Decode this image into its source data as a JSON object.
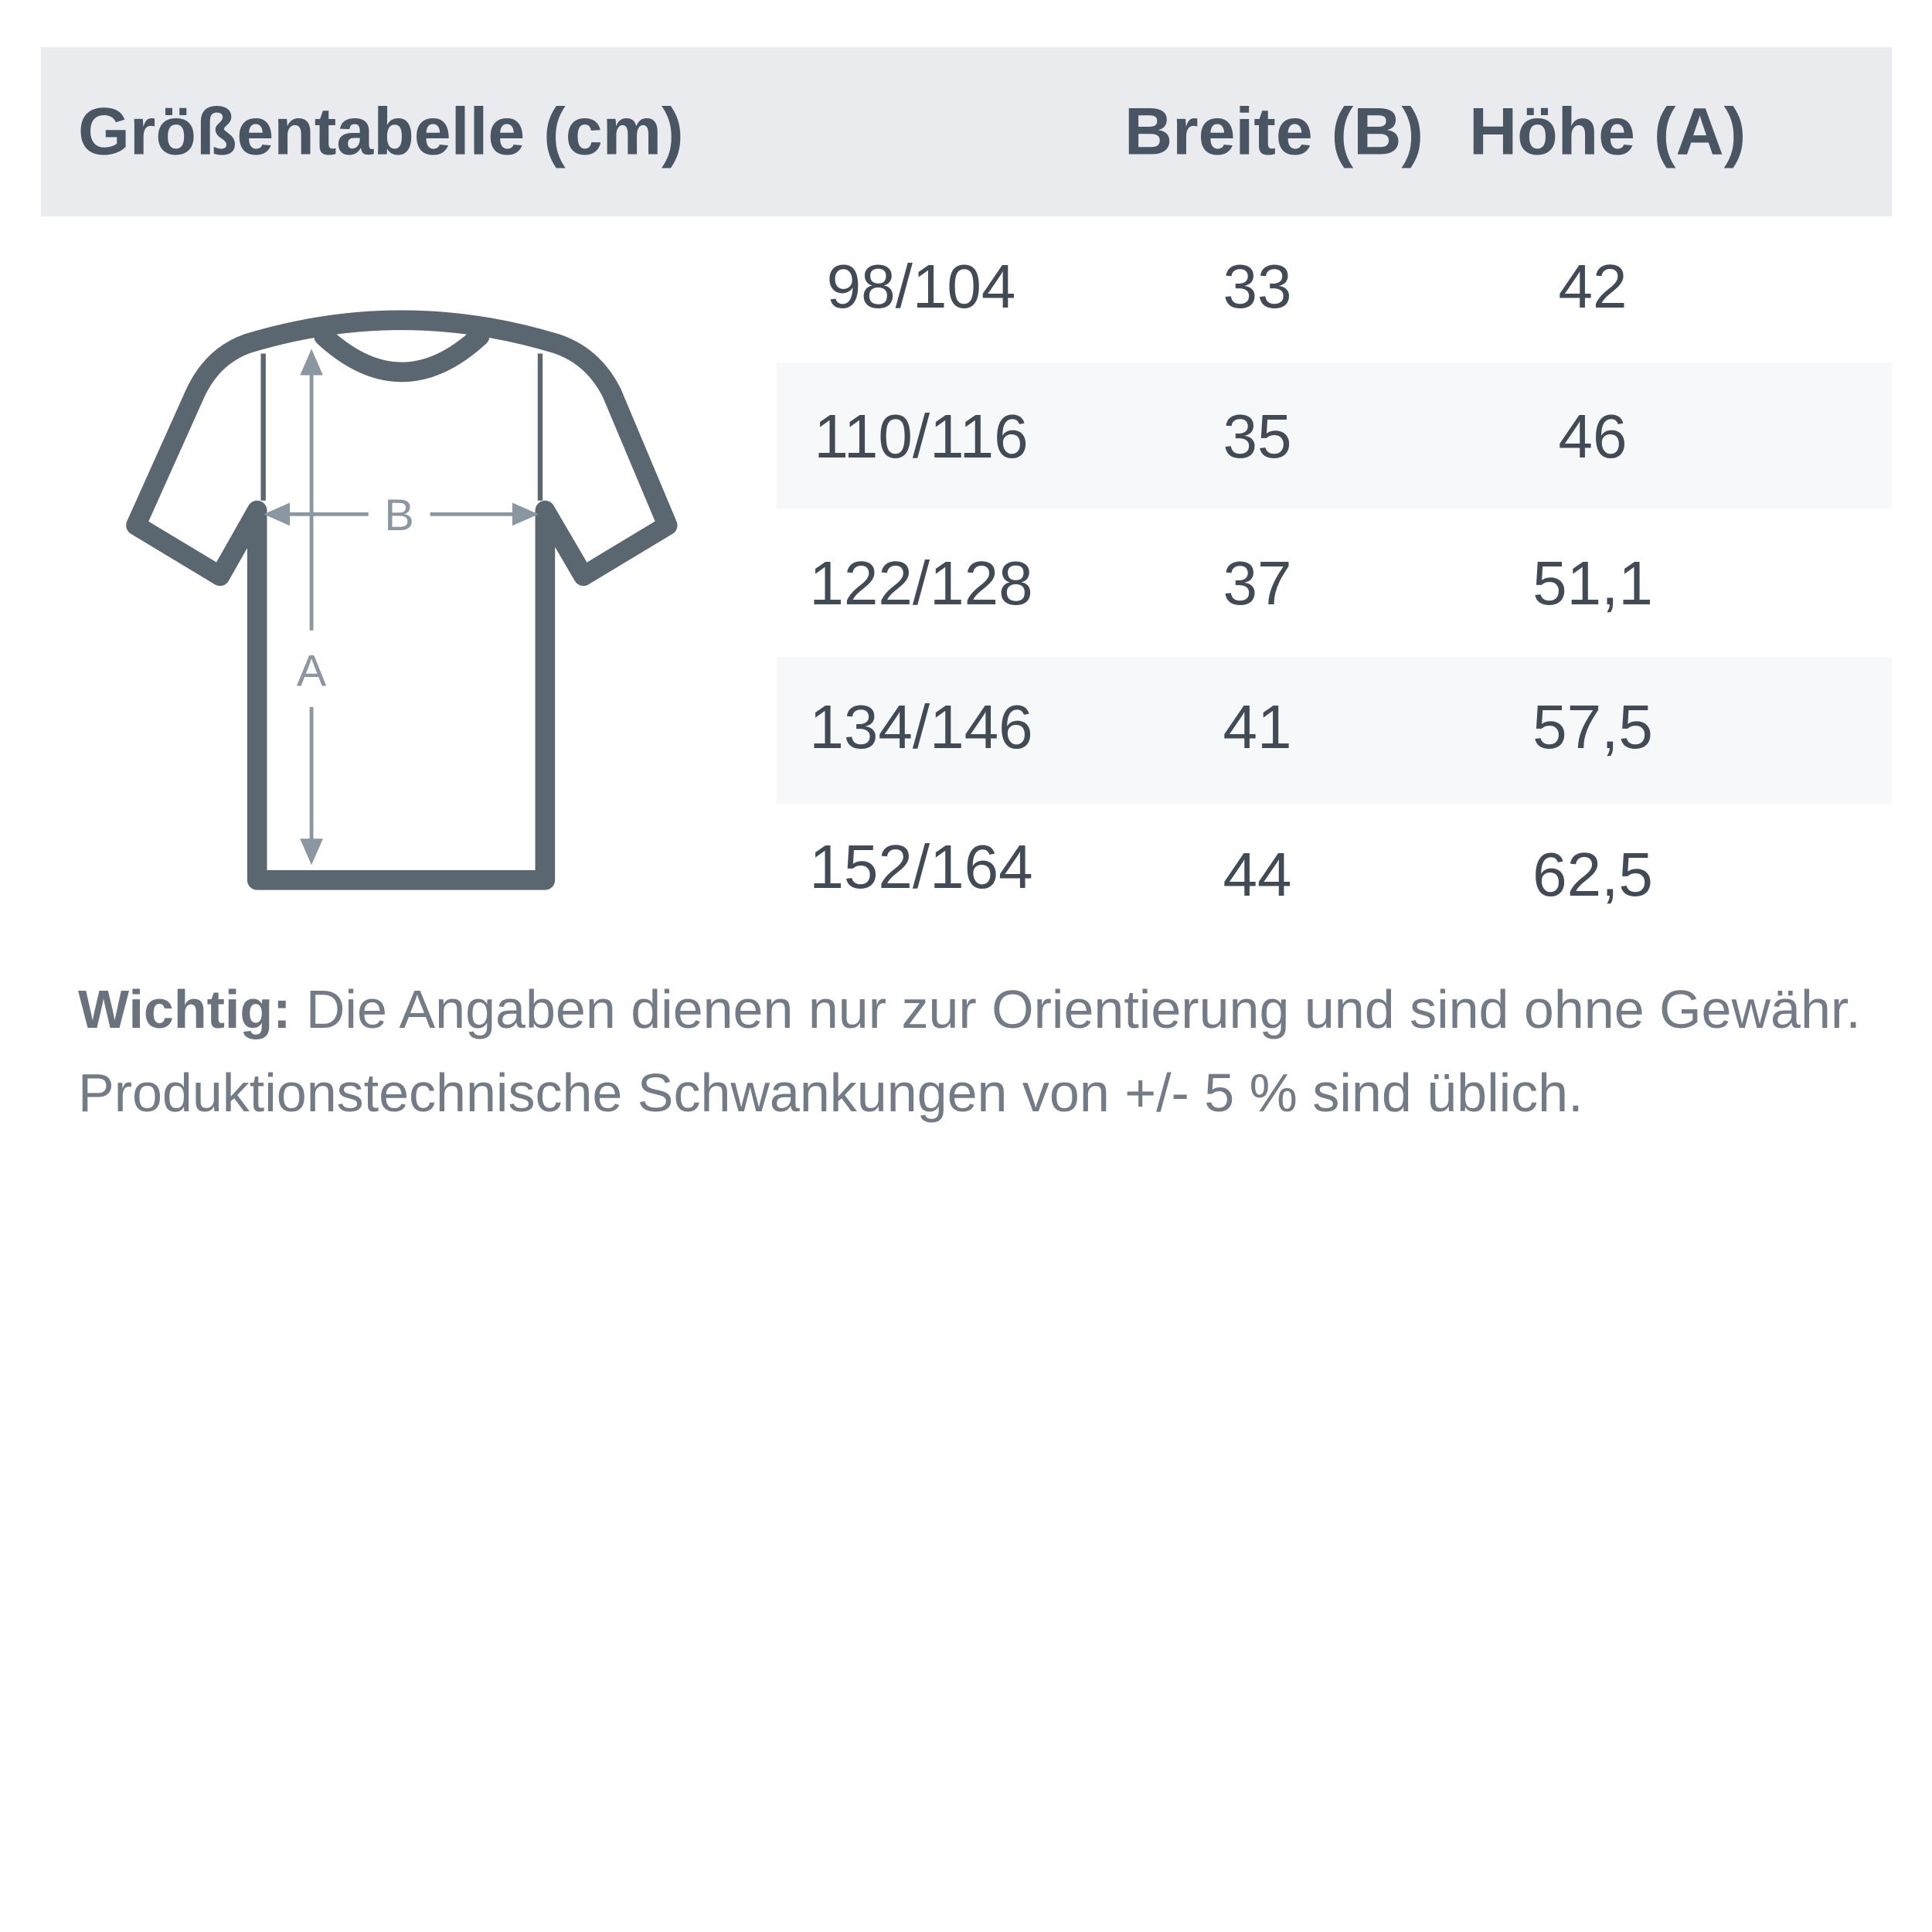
{
  "header": {
    "title": "Größentabelle (cm)",
    "col_width": "Breite (B)",
    "col_height": "Höhe (A)"
  },
  "rows": [
    {
      "size": "98/104",
      "width": "33",
      "height": "42"
    },
    {
      "size": "110/116",
      "width": "35",
      "height": "46"
    },
    {
      "size": "122/128",
      "width": "37",
      "height": "51,1"
    },
    {
      "size": "134/146",
      "width": "41",
      "height": "57,5"
    },
    {
      "size": "152/164",
      "width": "44",
      "height": "62,5"
    }
  ],
  "diagram": {
    "label_b": "B",
    "label_a": "A"
  },
  "note": {
    "bold": "Wichtig:",
    "line1": " Die Angaben dienen nur zur Orientierung und sind ohne Gewähr.",
    "line2": "Produktionstechnische Schwankungen von +/- 5 % sind üblich."
  },
  "colors": {
    "header_bg": "#eaebee",
    "shirt": "#5a6670",
    "arrow": "#8a96a0"
  }
}
